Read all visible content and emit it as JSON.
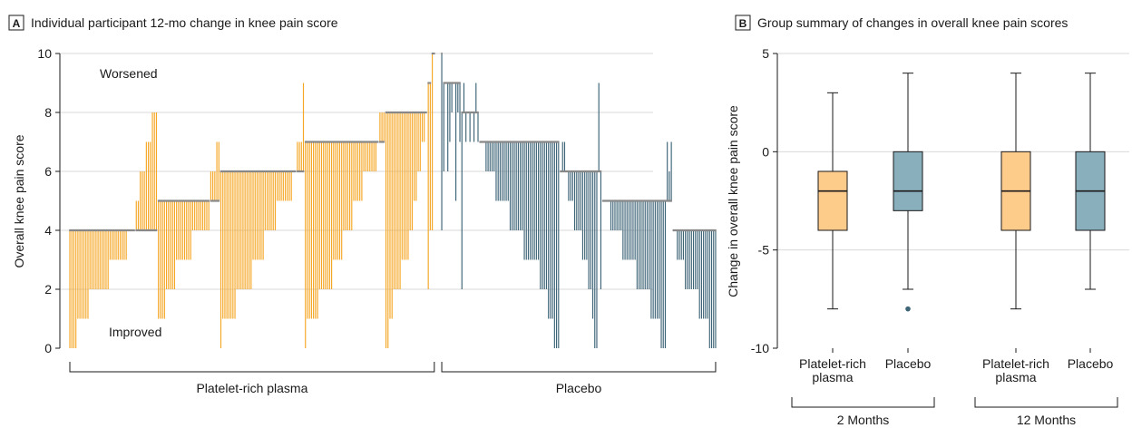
{
  "colors": {
    "prp": "#F5A623",
    "placebo": "#3D6477",
    "prp_box": "#FDCB8A",
    "placebo_box": "#8AAFBC",
    "grid": "#D9D9D9",
    "axis": "#1a1a1a",
    "baseline": "#888888"
  },
  "panelA": {
    "badge": "A",
    "title": "Individual participant 12-mo change in knee pain score",
    "ylabel": "Overall knee pain score",
    "annotation_worsened": "Worsened",
    "annotation_improved": "Improved",
    "group_labels": [
      "Platelet-rich plasma",
      "Placebo"
    ]
  },
  "panelB": {
    "badge": "B",
    "title": "Group summary of changes in overall knee pain scores",
    "ylabel": "Change in overall knee pain score",
    "timepoint_labels": [
      "2 Months",
      "12 Months"
    ]
  },
  "chart_data": [
    {
      "type": "bar",
      "subtype": "waterfall",
      "title": "Individual participant 12-mo change in knee pain score",
      "ylabel": "Overall knee pain score",
      "ylim": [
        0,
        10
      ],
      "yticks": [
        0,
        2,
        4,
        6,
        8,
        10
      ],
      "grid": true,
      "groups": [
        {
          "name": "Platelet-rich plasma",
          "color": "#F5A623",
          "participants": [
            {
              "baseline": 4,
              "final": [
                0,
                0,
                0,
                0,
                1,
                1,
                1,
                1,
                1,
                1,
                2,
                2,
                2,
                2,
                2,
                2,
                2,
                2,
                2,
                2,
                3,
                3,
                3,
                3,
                3,
                3,
                3,
                3,
                3,
                4,
                4,
                4,
                4
              ]
            },
            {
              "baseline": 4,
              "final": [
                5,
                5,
                6,
                6,
                6,
                7,
                7,
                7,
                8,
                8,
                8
              ]
            },
            {
              "baseline": 5,
              "final": [
                1,
                1,
                1,
                1,
                2,
                2,
                2,
                2,
                2,
                3,
                3,
                3,
                3,
                3,
                3,
                3,
                3,
                4,
                4,
                4,
                4,
                4,
                4,
                4,
                4,
                4
              ]
            },
            {
              "baseline": 5,
              "final": [
                6,
                6,
                6,
                7,
                7
              ]
            },
            {
              "baseline": 6,
              "final": [
                0,
                1,
                1,
                1,
                1,
                1,
                1,
                1,
                2,
                2,
                2,
                2,
                2,
                2,
                2,
                2,
                3,
                3,
                3,
                3,
                3,
                3,
                4,
                4,
                4,
                4,
                4,
                4,
                5,
                5,
                5,
                5,
                5,
                5,
                5,
                5,
                6,
                6
              ]
            },
            {
              "baseline": 6,
              "final": [
                7,
                7,
                7,
                9
              ]
            },
            {
              "baseline": 7,
              "final": [
                0,
                1,
                1,
                1,
                1,
                1,
                1,
                2,
                2,
                2,
                2,
                2,
                2,
                2,
                3,
                3,
                3,
                3,
                3,
                4,
                4,
                4,
                4,
                4,
                5,
                5,
                5,
                5,
                5,
                6,
                6,
                6,
                6,
                6,
                6,
                6,
                7
              ]
            },
            {
              "baseline": 7,
              "final": [
                8,
                8,
                8
              ]
            },
            {
              "baseline": 8,
              "final": [
                0,
                0,
                1,
                1,
                2,
                2,
                2,
                2,
                3,
                3,
                3,
                3,
                4,
                4,
                5,
                5,
                6,
                6,
                7,
                7,
                8
              ]
            },
            {
              "baseline": 9,
              "final": [
                2,
                4
              ]
            },
            {
              "baseline": 10,
              "final": [
                4,
                10
              ]
            }
          ]
        },
        {
          "name": "Placebo",
          "color": "#3D6477",
          "participants": [
            {
              "baseline": 10,
              "final": [
                4
              ]
            },
            {
              "baseline": 9,
              "final": [
                6,
                9,
                6,
                7,
                8,
                9,
                5,
                8,
                7
              ]
            },
            {
              "baseline": 8,
              "final": [
                2,
                9,
                7,
                8,
                7,
                8,
                7,
                9,
                7
              ]
            },
            {
              "baseline": 7,
              "final": [
                7,
                7,
                7,
                6,
                6,
                6,
                6,
                6,
                5,
                5,
                5,
                5,
                5,
                5,
                5,
                4,
                4,
                4,
                4,
                4,
                4,
                4,
                3,
                3,
                3,
                3,
                3,
                3,
                3,
                3,
                2,
                2,
                2,
                2,
                1,
                1,
                1,
                0,
                0,
                0
              ]
            },
            {
              "baseline": 6,
              "final": [
                6,
                7,
                7,
                6,
                5,
                5,
                5,
                4,
                4,
                4,
                4,
                3,
                3,
                3,
                2,
                2,
                1,
                0,
                0,
                9,
                2
              ]
            },
            {
              "baseline": 5,
              "final": [
                5,
                5,
                5,
                5,
                4,
                4,
                4,
                4,
                4,
                4,
                3,
                3,
                3,
                3,
                3,
                3,
                3,
                2,
                2,
                2,
                2,
                2,
                2,
                2,
                1,
                1,
                1,
                1,
                1,
                0,
                0,
                0,
                7,
                6,
                7
              ]
            },
            {
              "baseline": 4,
              "final": [
                4,
                4,
                3,
                3,
                3,
                3,
                2,
                2,
                2,
                2,
                2,
                2,
                2,
                1,
                1,
                1,
                1,
                1,
                0,
                0,
                0,
                0
              ]
            }
          ]
        }
      ]
    },
    {
      "type": "box",
      "title": "Group summary of changes in overall knee pain scores",
      "ylabel": "Change in overall knee pain score",
      "ylim": [
        -10,
        5
      ],
      "yticks": [
        -10,
        -5,
        0,
        5
      ],
      "categories": [
        "Platelet-rich plasma",
        "Placebo",
        "Platelet-rich plasma",
        "Placebo"
      ],
      "timepoints": [
        "2 Months",
        "2 Months",
        "12 Months",
        "12 Months"
      ],
      "boxes": [
        {
          "name": "Platelet-rich plasma",
          "timepoint": "2 Months",
          "min": -8,
          "q1": -4,
          "median": -2,
          "q3": -1,
          "max": 3,
          "outliers": []
        },
        {
          "name": "Placebo",
          "timepoint": "2 Months",
          "min": -7,
          "q1": -3,
          "median": -2,
          "q3": 0,
          "max": 4,
          "outliers": [
            -8
          ]
        },
        {
          "name": "Platelet-rich plasma",
          "timepoint": "12 Months",
          "min": -8,
          "q1": -4,
          "median": -2,
          "q3": 0,
          "max": 4,
          "outliers": []
        },
        {
          "name": "Placebo",
          "timepoint": "12 Months",
          "min": -7,
          "q1": -4,
          "median": -2,
          "q3": 0,
          "max": 4,
          "outliers": []
        }
      ]
    }
  ]
}
